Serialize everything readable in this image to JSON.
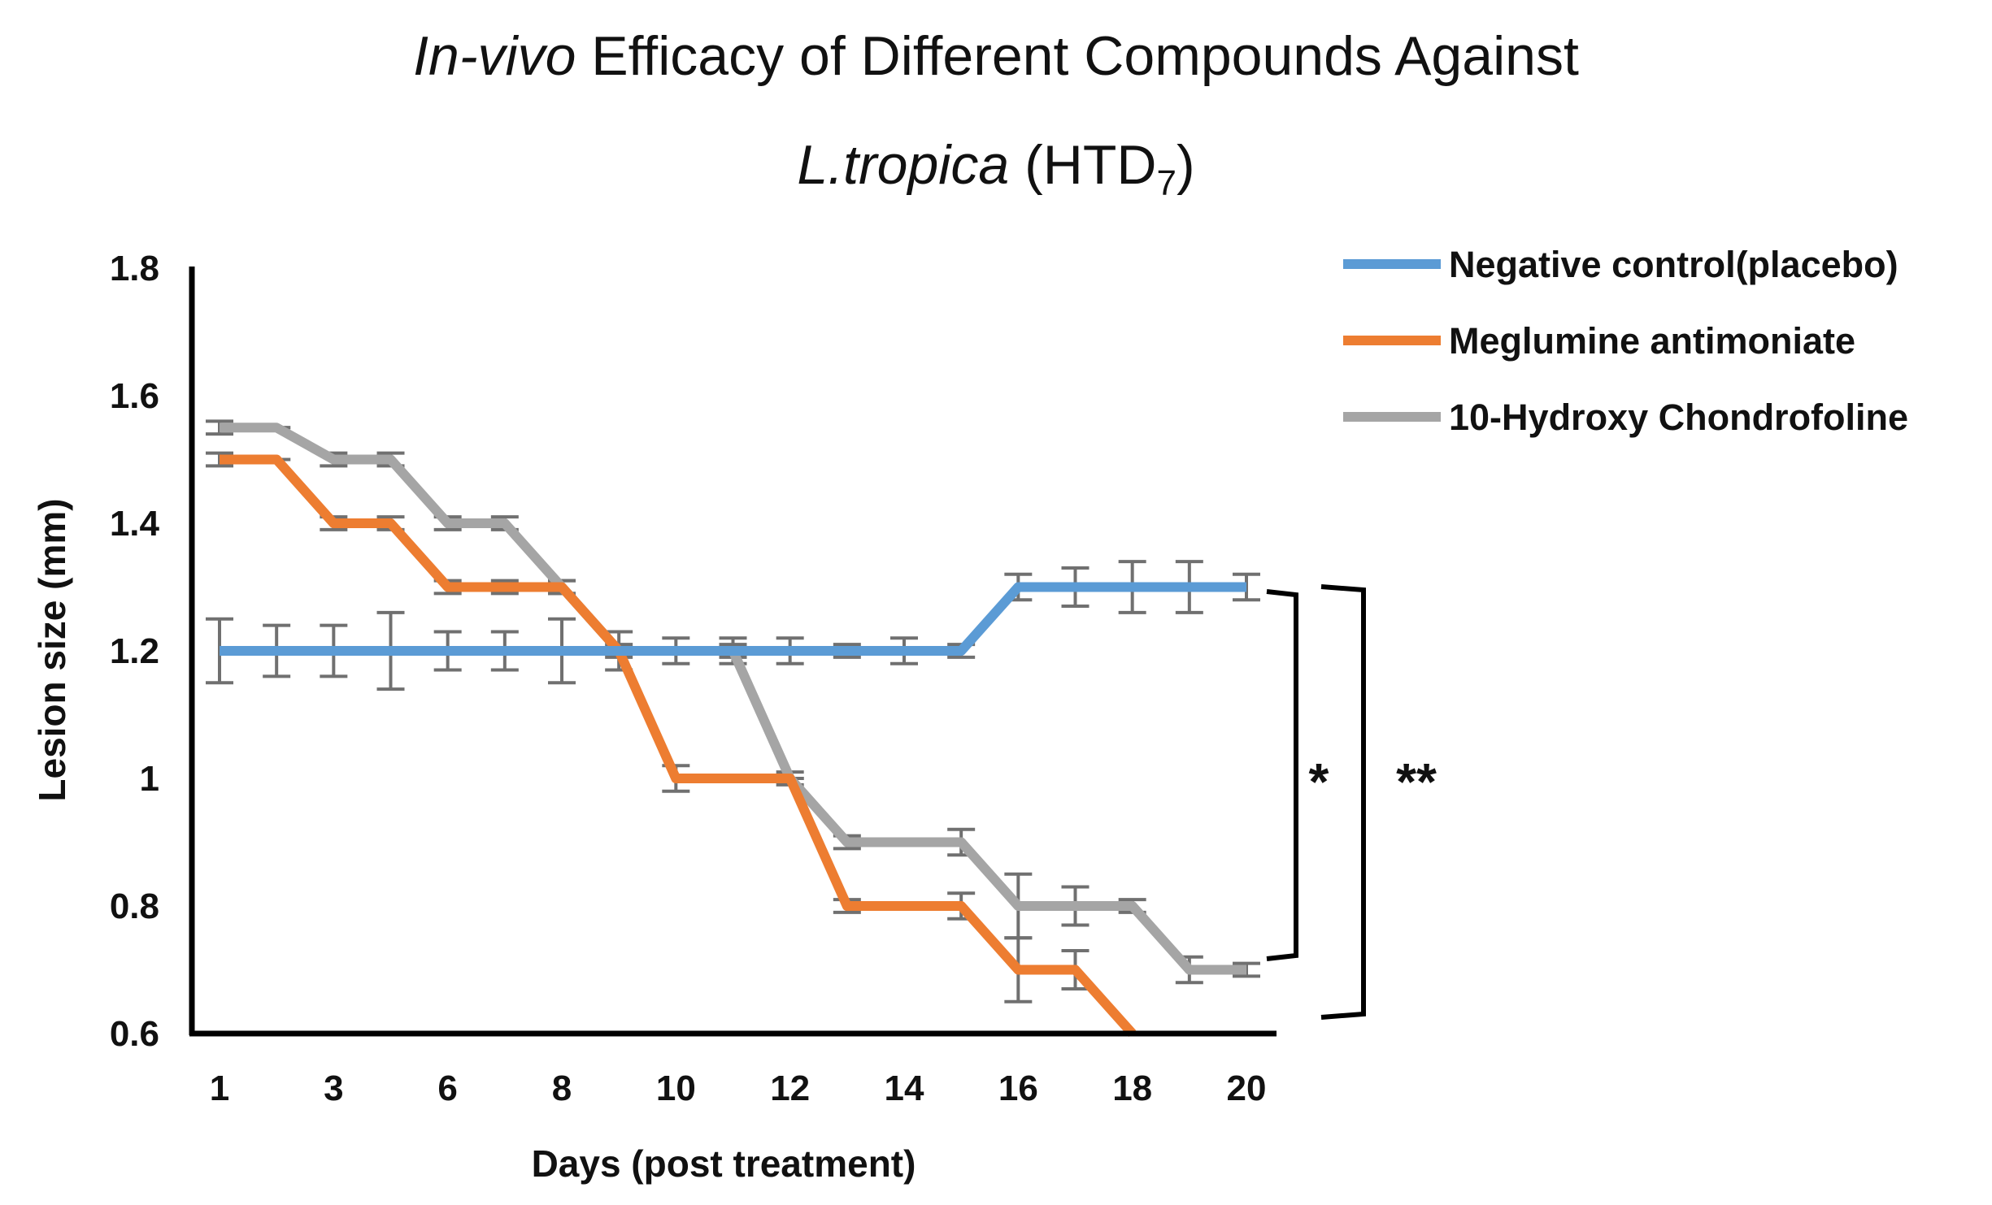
{
  "chart_data": {
    "type": "line",
    "title": {
      "italic_prefix": "In-vivo",
      "line1_rest": " Efficacy of Different Compounds Against",
      "line2_italic": "L.tropica",
      "line2_rest": " (HTD",
      "line2_sub": "7",
      "line2_close": ")"
    },
    "xlabel": "Days (post treatment)",
    "ylabel": "Lesion size (mm)",
    "ylim": [
      0.6,
      1.8
    ],
    "yticks": [
      "1.8",
      "1.6",
      "1.4",
      "1.2",
      "1",
      "0.8",
      "0.6"
    ],
    "ytick_values": [
      1.8,
      1.6,
      1.4,
      1.2,
      1.0,
      0.8,
      0.6
    ],
    "categories": [
      "1",
      "",
      "3",
      "",
      "6",
      "",
      "8",
      "",
      "10",
      "",
      "12",
      "",
      "14",
      "",
      "16",
      "",
      "18",
      "",
      "20"
    ],
    "legend_position": "top-right",
    "series": [
      {
        "name": "Negative control(placebo)",
        "color": "#5b9bd5",
        "values": [
          1.2,
          1.2,
          1.2,
          1.2,
          1.2,
          1.2,
          1.2,
          1.2,
          1.2,
          1.2,
          1.2,
          1.2,
          1.2,
          1.2,
          1.3,
          1.3,
          1.3,
          1.3,
          1.3
        ],
        "errors": [
          0.05,
          0.04,
          0.04,
          0.06,
          0.03,
          0.03,
          0.05,
          0.03,
          0.02,
          0.02,
          0.02,
          0.01,
          0.02,
          0.01,
          0.02,
          0.03,
          0.04,
          0.04,
          0.02
        ]
      },
      {
        "name": "Meglumine antimoniate",
        "color": "#ed7d31",
        "values": [
          1.5,
          1.5,
          1.4,
          1.4,
          1.3,
          1.3,
          1.3,
          1.2,
          1.0,
          1.0,
          1.0,
          0.8,
          0.8,
          0.8,
          0.7,
          0.7,
          0.6,
          null,
          null
        ],
        "errors": [
          0.01,
          0,
          0.01,
          0.01,
          0.01,
          0.01,
          0.01,
          0,
          0.02,
          0,
          0,
          0.01,
          0,
          0.02,
          0.05,
          0.03,
          0,
          0,
          0
        ]
      },
      {
        "name": "10-Hydroxy Chondrofoline",
        "color": "#a5a5a5",
        "values": [
          1.55,
          1.55,
          1.5,
          1.5,
          1.4,
          1.4,
          1.3,
          1.2,
          1.2,
          1.2,
          1.0,
          0.9,
          0.9,
          0.9,
          0.8,
          0.8,
          0.8,
          0.7,
          0.7
        ],
        "errors": [
          0.01,
          0,
          0.01,
          0.01,
          0.01,
          0.01,
          0.01,
          0.01,
          0,
          0.01,
          0.01,
          0.01,
          0,
          0.02,
          0.05,
          0.03,
          0.01,
          0.02,
          0.01
        ]
      }
    ],
    "annotations": [
      {
        "label": "*",
        "between": [
          "Negative control(placebo)",
          "10-Hydroxy Chondrofoline"
        ]
      },
      {
        "label": "**",
        "between": [
          "Negative control(placebo)",
          "Meglumine antimoniate"
        ]
      }
    ]
  }
}
